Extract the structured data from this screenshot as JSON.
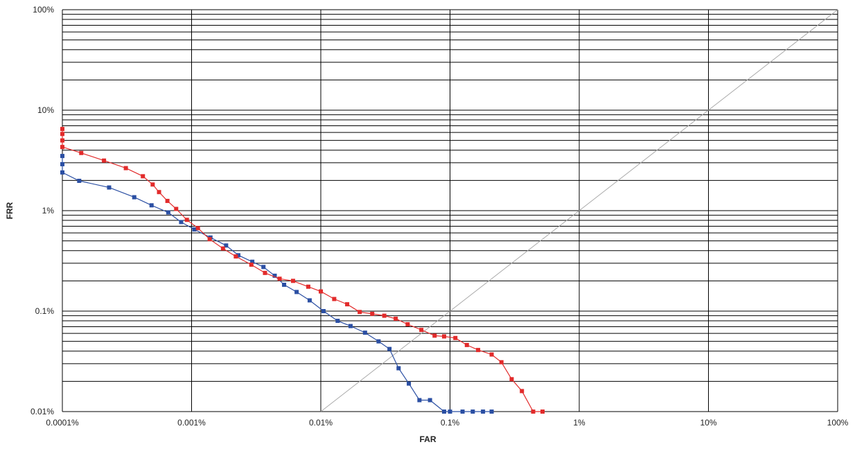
{
  "chart_data": {
    "type": "line",
    "title": "",
    "xlabel": "FAR",
    "ylabel": "FRR",
    "x_scale": "log",
    "y_scale": "log",
    "xlim": [
      0.0001,
      100
    ],
    "ylim": [
      0.01,
      100
    ],
    "x_ticks": [
      {
        "value": 0.0001,
        "label": "0.0001%"
      },
      {
        "value": 0.001,
        "label": "0.001%"
      },
      {
        "value": 0.01,
        "label": "0.01%"
      },
      {
        "value": 0.1,
        "label": "0.1%"
      },
      {
        "value": 1,
        "label": "1%"
      },
      {
        "value": 10,
        "label": "10%"
      },
      {
        "value": 100,
        "label": "100%"
      }
    ],
    "y_ticks": [
      {
        "value": 0.01,
        "label": "0.01%"
      },
      {
        "value": 0.1,
        "label": "0.1%"
      },
      {
        "value": 1,
        "label": "1%"
      },
      {
        "value": 10,
        "label": "10%"
      },
      {
        "value": 100,
        "label": "100%"
      }
    ],
    "grid": {
      "x_major": true,
      "y_major": true,
      "y_minor": true
    },
    "reference_line": {
      "x": [
        0.01,
        100
      ],
      "y": [
        0.01,
        100
      ],
      "color": "#aaaaaa"
    },
    "series": [
      {
        "color": "#2b4fa3",
        "points": [
          [
            0.0001,
            3.5
          ],
          [
            0.0001,
            2.9
          ],
          [
            0.0001,
            2.4
          ],
          [
            0.000135,
            1.98
          ],
          [
            0.00023,
            1.7
          ],
          [
            0.00036,
            1.36
          ],
          [
            0.00049,
            1.13
          ],
          [
            0.00066,
            0.96
          ],
          [
            0.00083,
            0.77
          ],
          [
            0.00105,
            0.65
          ],
          [
            0.0014,
            0.54
          ],
          [
            0.00185,
            0.45
          ],
          [
            0.0023,
            0.36
          ],
          [
            0.00295,
            0.31
          ],
          [
            0.0036,
            0.275
          ],
          [
            0.0044,
            0.225
          ],
          [
            0.0052,
            0.183
          ],
          [
            0.0065,
            0.155
          ],
          [
            0.0082,
            0.128
          ],
          [
            0.0105,
            0.1
          ],
          [
            0.0135,
            0.08
          ],
          [
            0.017,
            0.071
          ],
          [
            0.022,
            0.061
          ],
          [
            0.028,
            0.05
          ],
          [
            0.034,
            0.042
          ],
          [
            0.04,
            0.027
          ],
          [
            0.048,
            0.019
          ],
          [
            0.058,
            0.013
          ],
          [
            0.07,
            0.013
          ],
          [
            0.09,
            0.01
          ],
          [
            0.1,
            0.01
          ],
          [
            0.125,
            0.01
          ],
          [
            0.15,
            0.01
          ],
          [
            0.18,
            0.01
          ],
          [
            0.21,
            0.01
          ]
        ]
      },
      {
        "color": "#e22b2b",
        "points": [
          [
            0.0001,
            6.5
          ],
          [
            0.0001,
            5.8
          ],
          [
            0.0001,
            5.0
          ],
          [
            0.0001,
            4.3
          ],
          [
            0.00014,
            3.75
          ],
          [
            0.00021,
            3.15
          ],
          [
            0.00031,
            2.65
          ],
          [
            0.00042,
            2.2
          ],
          [
            0.0005,
            1.82
          ],
          [
            0.00056,
            1.53
          ],
          [
            0.00065,
            1.25
          ],
          [
            0.00076,
            1.04
          ],
          [
            0.00092,
            0.81
          ],
          [
            0.00112,
            0.67
          ],
          [
            0.00138,
            0.52
          ],
          [
            0.00175,
            0.42
          ],
          [
            0.0022,
            0.35
          ],
          [
            0.0029,
            0.29
          ],
          [
            0.0037,
            0.24
          ],
          [
            0.0048,
            0.21
          ],
          [
            0.0061,
            0.2
          ],
          [
            0.008,
            0.175
          ],
          [
            0.01,
            0.157
          ],
          [
            0.0127,
            0.132
          ],
          [
            0.016,
            0.117
          ],
          [
            0.02,
            0.098
          ],
          [
            0.025,
            0.094
          ],
          [
            0.031,
            0.09
          ],
          [
            0.038,
            0.084
          ],
          [
            0.047,
            0.074
          ],
          [
            0.06,
            0.065
          ],
          [
            0.076,
            0.057
          ],
          [
            0.09,
            0.056
          ],
          [
            0.11,
            0.054
          ],
          [
            0.135,
            0.046
          ],
          [
            0.165,
            0.041
          ],
          [
            0.21,
            0.037
          ],
          [
            0.25,
            0.031
          ],
          [
            0.3,
            0.021
          ],
          [
            0.36,
            0.016
          ],
          [
            0.44,
            0.01
          ],
          [
            0.52,
            0.01
          ]
        ]
      }
    ]
  }
}
